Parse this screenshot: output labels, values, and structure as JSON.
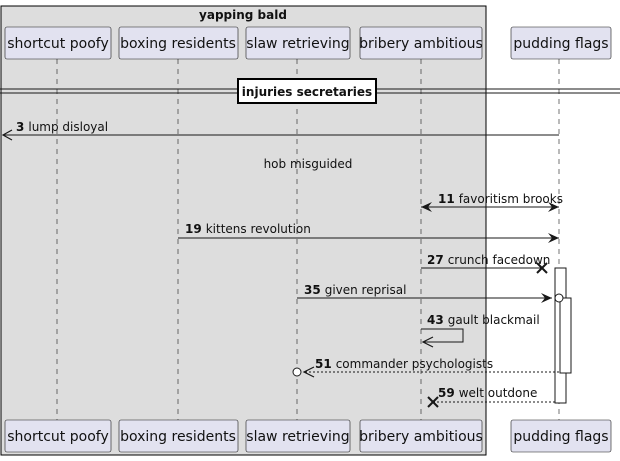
{
  "group": {
    "title": "yapping bald"
  },
  "participants": [
    {
      "id": "p1",
      "label": "shortcut poofy"
    },
    {
      "id": "p2",
      "label": "boxing residents"
    },
    {
      "id": "p3",
      "label": "slaw retrieving"
    },
    {
      "id": "p4",
      "label": "bribery ambitious"
    },
    {
      "id": "p5",
      "label": "pudding flags"
    }
  ],
  "divider": {
    "label": "injuries secretaries"
  },
  "delay": {
    "label": "hob misguided"
  },
  "messages": [
    {
      "num": "3",
      "text": "lump disloyal",
      "from": "p5",
      "to": "left-edge",
      "style": "solid",
      "head": "open"
    },
    {
      "num": "11",
      "text": "favoritism brooks",
      "from": "p4",
      "to": "p5",
      "style": "solid",
      "head": "both"
    },
    {
      "num": "19",
      "text": "kittens revolution",
      "from": "p2",
      "to": "p5",
      "style": "solid",
      "head": "open"
    },
    {
      "num": "27",
      "text": "crunch facedown",
      "from": "p4",
      "to": "p5",
      "style": "solid",
      "head": "cross"
    },
    {
      "num": "35",
      "text": "given reprisal",
      "from": "p3",
      "to": "p5",
      "style": "solid",
      "head": "circle"
    },
    {
      "num": "43",
      "text": "gault blackmail",
      "from": "p4",
      "to": "p4",
      "style": "solid",
      "head": "self"
    },
    {
      "num": "51",
      "text": "commander psychologists",
      "from": "p5",
      "to": "p3",
      "style": "dashed",
      "head": "circle"
    },
    {
      "num": "59",
      "text": "welt outdone",
      "from": "p5",
      "to": "p4",
      "style": "dashed",
      "head": "cross"
    }
  ]
}
